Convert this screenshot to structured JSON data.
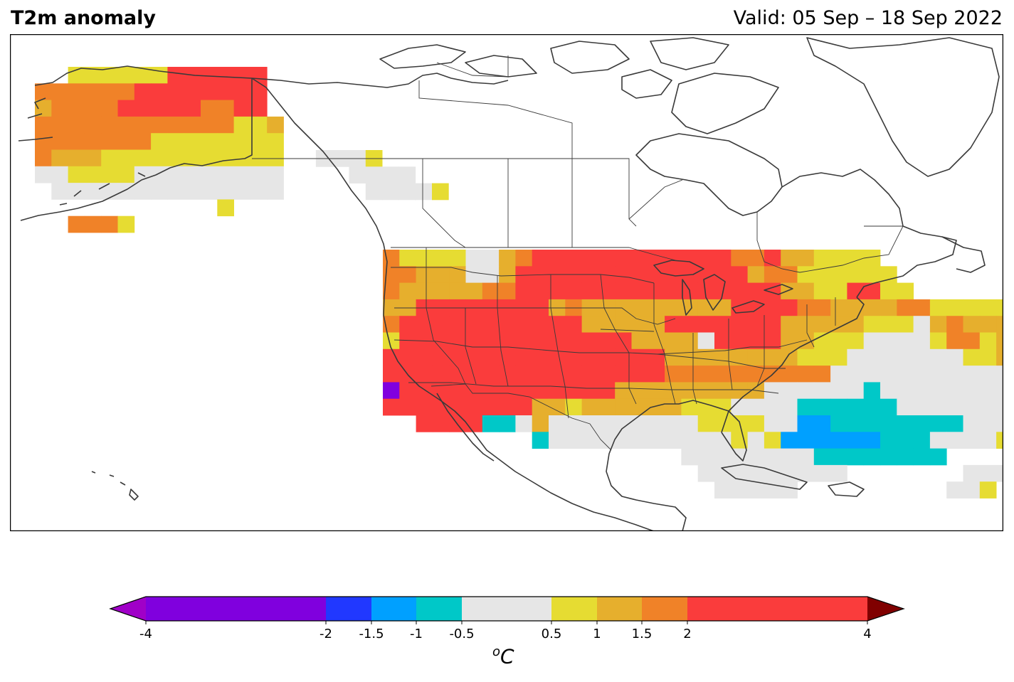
{
  "title": "T2m anomaly",
  "valid": "Valid: 05 Sep – 18 Sep 2022",
  "colorbar": {
    "unit_base": "C",
    "unit_sup": "o",
    "ticks": [
      "-4",
      "-2",
      "-1.5",
      "-1",
      "-0.5",
      "0.5",
      "1",
      "1.5",
      "2",
      "4"
    ],
    "bins": [
      {
        "from": -4,
        "to": -2,
        "color": "#8000DE"
      },
      {
        "from": -2,
        "to": -1.5,
        "color": "#2138FF"
      },
      {
        "from": -1.5,
        "to": -1,
        "color": "#00A0FF"
      },
      {
        "from": -1,
        "to": -0.5,
        "color": "#00C8C8"
      },
      {
        "from": -0.5,
        "to": 0.5,
        "color": "#E6E6E6"
      },
      {
        "from": 0.5,
        "to": 1,
        "color": "#E6DC32"
      },
      {
        "from": 1,
        "to": 1.5,
        "color": "#E6AF2D"
      },
      {
        "from": 1.5,
        "to": 2,
        "color": "#F08228"
      },
      {
        "from": 2,
        "to": 4,
        "color": "#FA3C3C"
      }
    ],
    "under_color": "#A000C8",
    "over_color": "#800000"
  }
}
